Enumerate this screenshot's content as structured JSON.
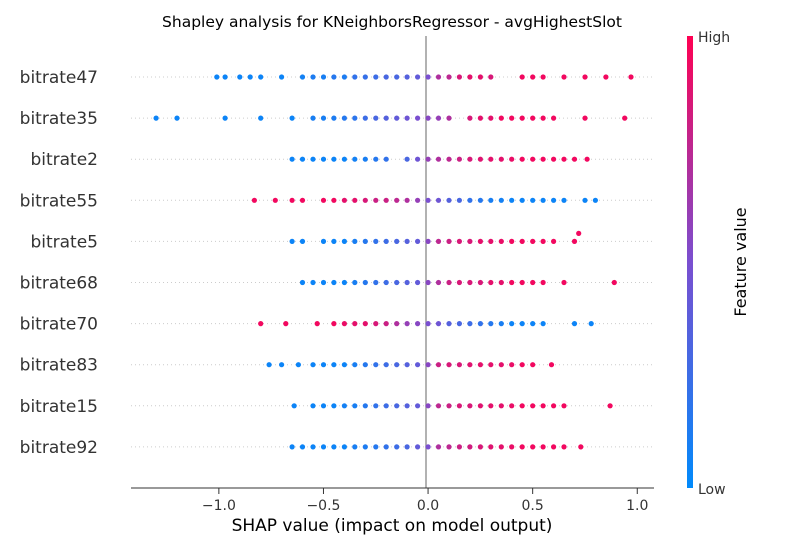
{
  "chart_data": {
    "type": "scatter",
    "title": "Shapley analysis for KNeighborsRegressor - avgHighestSlot",
    "xlabel": "SHAP value (impact on model output)",
    "xlim": [
      -1.42,
      1.08
    ],
    "xticks": [
      -1.0,
      -0.5,
      0.0,
      0.5,
      1.0
    ],
    "xtick_labels": [
      "−1.0",
      "−0.5",
      "0.0",
      "0.5",
      "1.0"
    ],
    "colorbar": {
      "title": "Feature value",
      "high_label": "High",
      "low_label": "Low",
      "low_color": "#008afb",
      "mid_color": "#7a4fd0",
      "high_color": "#ff0052"
    },
    "features": [
      {
        "name": "bitrate47",
        "points": [
          [
            -1.01,
            0.05
          ],
          [
            -0.97,
            0.05
          ],
          [
            -0.9,
            0.05
          ],
          [
            -0.85,
            0.05
          ],
          [
            -0.8,
            0.05
          ],
          [
            -0.7,
            0.05
          ],
          [
            -0.6,
            0.08
          ],
          [
            -0.55,
            0.12
          ],
          [
            -0.5,
            0.1
          ],
          [
            -0.45,
            0.15
          ],
          [
            -0.4,
            0.12
          ],
          [
            -0.35,
            0.2
          ],
          [
            -0.3,
            0.22
          ],
          [
            -0.25,
            0.25
          ],
          [
            -0.2,
            0.3
          ],
          [
            -0.15,
            0.3
          ],
          [
            -0.1,
            0.35
          ],
          [
            -0.05,
            0.4
          ],
          [
            0.0,
            0.5
          ],
          [
            0.05,
            0.7
          ],
          [
            0.1,
            0.75
          ],
          [
            0.15,
            0.85
          ],
          [
            0.2,
            0.9
          ],
          [
            0.25,
            0.9
          ],
          [
            0.3,
            0.85
          ],
          [
            0.45,
            0.95
          ],
          [
            0.5,
            0.95
          ],
          [
            0.55,
            0.95
          ],
          [
            0.65,
            0.95
          ],
          [
            0.75,
            0.95
          ],
          [
            0.85,
            0.95
          ],
          [
            0.97,
            0.95
          ]
        ]
      },
      {
        "name": "bitrate35",
        "points": [
          [
            -1.3,
            0.05
          ],
          [
            -1.2,
            0.05
          ],
          [
            -0.97,
            0.05
          ],
          [
            -0.8,
            0.05
          ],
          [
            -0.65,
            0.05
          ],
          [
            -0.55,
            0.1
          ],
          [
            -0.5,
            0.1
          ],
          [
            -0.45,
            0.12
          ],
          [
            -0.4,
            0.15
          ],
          [
            -0.35,
            0.18
          ],
          [
            -0.3,
            0.25
          ],
          [
            -0.25,
            0.3
          ],
          [
            -0.2,
            0.35
          ],
          [
            -0.15,
            0.4
          ],
          [
            -0.1,
            0.45
          ],
          [
            -0.05,
            0.5
          ],
          [
            0.0,
            0.55
          ],
          [
            0.05,
            0.6
          ],
          [
            0.1,
            0.7
          ],
          [
            0.2,
            0.85
          ],
          [
            0.25,
            0.9
          ],
          [
            0.3,
            0.9
          ],
          [
            0.35,
            0.95
          ],
          [
            0.4,
            0.95
          ],
          [
            0.45,
            0.95
          ],
          [
            0.5,
            0.95
          ],
          [
            0.55,
            0.95
          ],
          [
            0.6,
            0.95
          ],
          [
            0.75,
            0.95
          ],
          [
            0.94,
            0.95
          ]
        ]
      },
      {
        "name": "bitrate2",
        "points": [
          [
            -0.65,
            0.05
          ],
          [
            -0.6,
            0.05
          ],
          [
            -0.55,
            0.05
          ],
          [
            -0.5,
            0.05
          ],
          [
            -0.45,
            0.05
          ],
          [
            -0.4,
            0.05
          ],
          [
            -0.35,
            0.08
          ],
          [
            -0.3,
            0.1
          ],
          [
            -0.25,
            0.15
          ],
          [
            -0.2,
            0.2
          ],
          [
            -0.1,
            0.3
          ],
          [
            -0.05,
            0.45
          ],
          [
            0.0,
            0.6
          ],
          [
            0.05,
            0.7
          ],
          [
            0.1,
            0.75
          ],
          [
            0.15,
            0.8
          ],
          [
            0.2,
            0.85
          ],
          [
            0.25,
            0.88
          ],
          [
            0.3,
            0.9
          ],
          [
            0.35,
            0.9
          ],
          [
            0.4,
            0.92
          ],
          [
            0.45,
            0.95
          ],
          [
            0.5,
            0.95
          ],
          [
            0.55,
            0.95
          ],
          [
            0.6,
            0.95
          ],
          [
            0.65,
            0.95
          ],
          [
            0.7,
            0.95
          ],
          [
            0.76,
            0.95
          ]
        ]
      },
      {
        "name": "bitrate55",
        "points": [
          [
            -0.83,
            0.95
          ],
          [
            -0.73,
            0.95
          ],
          [
            -0.65,
            0.95
          ],
          [
            -0.6,
            0.95
          ],
          [
            -0.5,
            0.95
          ],
          [
            -0.45,
            0.95
          ],
          [
            -0.4,
            0.9
          ],
          [
            -0.35,
            0.9
          ],
          [
            -0.3,
            0.85
          ],
          [
            -0.25,
            0.8
          ],
          [
            -0.2,
            0.8
          ],
          [
            -0.15,
            0.75
          ],
          [
            -0.1,
            0.7
          ],
          [
            -0.05,
            0.6
          ],
          [
            0.0,
            0.5
          ],
          [
            0.05,
            0.45
          ],
          [
            0.1,
            0.35
          ],
          [
            0.15,
            0.3
          ],
          [
            0.2,
            0.2
          ],
          [
            0.25,
            0.15
          ],
          [
            0.3,
            0.1
          ],
          [
            0.35,
            0.08
          ],
          [
            0.4,
            0.05
          ],
          [
            0.45,
            0.05
          ],
          [
            0.5,
            0.05
          ],
          [
            0.55,
            0.05
          ],
          [
            0.6,
            0.05
          ],
          [
            0.65,
            0.05
          ],
          [
            0.75,
            0.05
          ],
          [
            0.8,
            0.05
          ]
        ]
      },
      {
        "name": "bitrate5",
        "points": [
          [
            -0.65,
            0.05
          ],
          [
            -0.6,
            0.05
          ],
          [
            -0.5,
            0.05
          ],
          [
            -0.45,
            0.05
          ],
          [
            -0.4,
            0.05
          ],
          [
            -0.35,
            0.1
          ],
          [
            -0.3,
            0.15
          ],
          [
            -0.25,
            0.2
          ],
          [
            -0.2,
            0.25
          ],
          [
            -0.15,
            0.3
          ],
          [
            -0.1,
            0.35
          ],
          [
            -0.05,
            0.4
          ],
          [
            0.0,
            0.55
          ],
          [
            0.05,
            0.75
          ],
          [
            0.1,
            0.8
          ],
          [
            0.15,
            0.85
          ],
          [
            0.2,
            0.85
          ],
          [
            0.25,
            0.9
          ],
          [
            0.3,
            0.9
          ],
          [
            0.35,
            0.92
          ],
          [
            0.4,
            0.95
          ],
          [
            0.45,
            0.95
          ],
          [
            0.5,
            0.95
          ],
          [
            0.55,
            0.95
          ],
          [
            0.6,
            0.95
          ],
          [
            0.7,
            0.95
          ],
          [
            0.72,
            0.95
          ]
        ]
      },
      {
        "name": "bitrate68",
        "points": [
          [
            -0.6,
            0.05
          ],
          [
            -0.55,
            0.05
          ],
          [
            -0.5,
            0.05
          ],
          [
            -0.45,
            0.05
          ],
          [
            -0.4,
            0.05
          ],
          [
            -0.35,
            0.1
          ],
          [
            -0.3,
            0.15
          ],
          [
            -0.25,
            0.2
          ],
          [
            -0.2,
            0.25
          ],
          [
            -0.15,
            0.3
          ],
          [
            -0.1,
            0.35
          ],
          [
            -0.05,
            0.4
          ],
          [
            0.0,
            0.55
          ],
          [
            0.05,
            0.7
          ],
          [
            0.1,
            0.8
          ],
          [
            0.15,
            0.85
          ],
          [
            0.2,
            0.85
          ],
          [
            0.25,
            0.85
          ],
          [
            0.3,
            0.9
          ],
          [
            0.35,
            0.9
          ],
          [
            0.4,
            0.95
          ],
          [
            0.45,
            0.95
          ],
          [
            0.5,
            0.95
          ],
          [
            0.55,
            0.95
          ],
          [
            0.65,
            0.95
          ],
          [
            0.89,
            0.95
          ]
        ]
      },
      {
        "name": "bitrate70",
        "points": [
          [
            -0.8,
            0.95
          ],
          [
            -0.68,
            0.95
          ],
          [
            -0.53,
            0.95
          ],
          [
            -0.45,
            0.95
          ],
          [
            -0.4,
            0.92
          ],
          [
            -0.35,
            0.9
          ],
          [
            -0.3,
            0.9
          ],
          [
            -0.25,
            0.85
          ],
          [
            -0.2,
            0.8
          ],
          [
            -0.15,
            0.7
          ],
          [
            -0.1,
            0.6
          ],
          [
            -0.05,
            0.55
          ],
          [
            0.0,
            0.5
          ],
          [
            0.05,
            0.45
          ],
          [
            0.1,
            0.35
          ],
          [
            0.15,
            0.3
          ],
          [
            0.2,
            0.25
          ],
          [
            0.25,
            0.2
          ],
          [
            0.3,
            0.15
          ],
          [
            0.35,
            0.1
          ],
          [
            0.4,
            0.05
          ],
          [
            0.45,
            0.05
          ],
          [
            0.5,
            0.05
          ],
          [
            0.55,
            0.05
          ],
          [
            0.7,
            0.05
          ],
          [
            0.78,
            0.05
          ]
        ]
      },
      {
        "name": "bitrate83",
        "points": [
          [
            -0.76,
            0.05
          ],
          [
            -0.7,
            0.05
          ],
          [
            -0.62,
            0.05
          ],
          [
            -0.55,
            0.05
          ],
          [
            -0.5,
            0.05
          ],
          [
            -0.45,
            0.05
          ],
          [
            -0.4,
            0.05
          ],
          [
            -0.35,
            0.1
          ],
          [
            -0.3,
            0.15
          ],
          [
            -0.25,
            0.2
          ],
          [
            -0.2,
            0.25
          ],
          [
            -0.15,
            0.3
          ],
          [
            -0.1,
            0.35
          ],
          [
            -0.05,
            0.4
          ],
          [
            0.0,
            0.55
          ],
          [
            0.05,
            0.8
          ],
          [
            0.1,
            0.85
          ],
          [
            0.15,
            0.85
          ],
          [
            0.2,
            0.88
          ],
          [
            0.25,
            0.9
          ],
          [
            0.3,
            0.9
          ],
          [
            0.35,
            0.9
          ],
          [
            0.4,
            0.92
          ],
          [
            0.45,
            0.95
          ],
          [
            0.5,
            0.95
          ],
          [
            0.59,
            0.95
          ]
        ]
      },
      {
        "name": "bitrate15",
        "points": [
          [
            -0.64,
            0.05
          ],
          [
            -0.55,
            0.05
          ],
          [
            -0.5,
            0.05
          ],
          [
            -0.45,
            0.05
          ],
          [
            -0.4,
            0.08
          ],
          [
            -0.35,
            0.1
          ],
          [
            -0.3,
            0.15
          ],
          [
            -0.25,
            0.2
          ],
          [
            -0.2,
            0.25
          ],
          [
            -0.15,
            0.3
          ],
          [
            -0.1,
            0.35
          ],
          [
            -0.05,
            0.4
          ],
          [
            0.0,
            0.55
          ],
          [
            0.05,
            0.75
          ],
          [
            0.1,
            0.8
          ],
          [
            0.15,
            0.85
          ],
          [
            0.2,
            0.85
          ],
          [
            0.25,
            0.88
          ],
          [
            0.3,
            0.9
          ],
          [
            0.35,
            0.9
          ],
          [
            0.4,
            0.92
          ],
          [
            0.45,
            0.95
          ],
          [
            0.5,
            0.95
          ],
          [
            0.55,
            0.95
          ],
          [
            0.6,
            0.95
          ],
          [
            0.65,
            0.95
          ],
          [
            0.87,
            0.95
          ]
        ]
      },
      {
        "name": "bitrate92",
        "points": [
          [
            -0.65,
            0.05
          ],
          [
            -0.6,
            0.05
          ],
          [
            -0.55,
            0.05
          ],
          [
            -0.5,
            0.05
          ],
          [
            -0.45,
            0.05
          ],
          [
            -0.4,
            0.05
          ],
          [
            -0.35,
            0.1
          ],
          [
            -0.3,
            0.12
          ],
          [
            -0.25,
            0.15
          ],
          [
            -0.2,
            0.2
          ],
          [
            -0.15,
            0.25
          ],
          [
            -0.1,
            0.3
          ],
          [
            -0.05,
            0.4
          ],
          [
            0.0,
            0.5
          ],
          [
            0.05,
            0.7
          ],
          [
            0.1,
            0.75
          ],
          [
            0.15,
            0.8
          ],
          [
            0.2,
            0.82
          ],
          [
            0.25,
            0.85
          ],
          [
            0.3,
            0.88
          ],
          [
            0.35,
            0.9
          ],
          [
            0.4,
            0.92
          ],
          [
            0.45,
            0.95
          ],
          [
            0.5,
            0.95
          ],
          [
            0.55,
            0.95
          ],
          [
            0.6,
            0.95
          ],
          [
            0.65,
            0.95
          ],
          [
            0.73,
            0.95
          ]
        ]
      }
    ]
  }
}
